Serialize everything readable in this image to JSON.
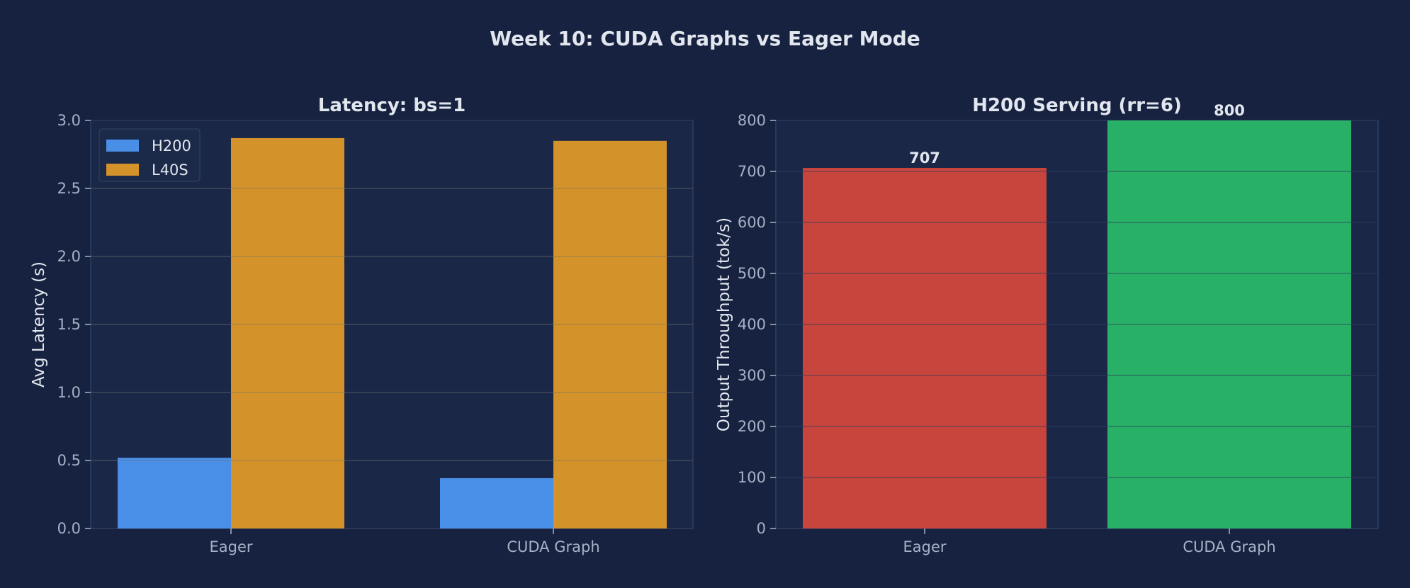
{
  "figure": {
    "title": "Week 10: CUDA Graphs vs Eager Mode"
  },
  "colors": {
    "background": "#172240",
    "axes_face": "#1a2747",
    "spine": "#2f3f62",
    "grid": "#2a3756",
    "tick_text": "#a7b1c6",
    "title_text": "#e2e6ee",
    "h200": "#4a8fe7",
    "l40s": "#d4922a",
    "eager": "#c8453d",
    "cuda_graph": "#28b067"
  },
  "chart_data": [
    {
      "type": "bar",
      "title": "Latency: bs=1",
      "xlabel": "",
      "ylabel": "Avg Latency (s)",
      "categories": [
        "Eager",
        "CUDA Graph"
      ],
      "series": [
        {
          "name": "H200",
          "values": [
            0.52,
            0.37
          ],
          "color": "#4a8fe7"
        },
        {
          "name": "L40S",
          "values": [
            2.87,
            2.85
          ],
          "color": "#d4922a"
        }
      ],
      "ylim": [
        0,
        3.0
      ],
      "yticks": [
        "0.0",
        "0.5",
        "1.0",
        "1.5",
        "2.0",
        "2.5",
        "3.0"
      ],
      "legend": "top-left",
      "grid": true
    },
    {
      "type": "bar",
      "title": "H200 Serving (rr=6)",
      "xlabel": "",
      "ylabel": "Output Throughput (tok/s)",
      "categories": [
        "Eager",
        "CUDA Graph"
      ],
      "values": [
        707,
        800
      ],
      "value_labels": [
        "707",
        "800"
      ],
      "colors": [
        "#c8453d",
        "#28b067"
      ],
      "ylim": [
        0,
        800
      ],
      "yticks": [
        "0",
        "100",
        "200",
        "300",
        "400",
        "500",
        "600",
        "700",
        "800"
      ],
      "grid": true
    }
  ]
}
